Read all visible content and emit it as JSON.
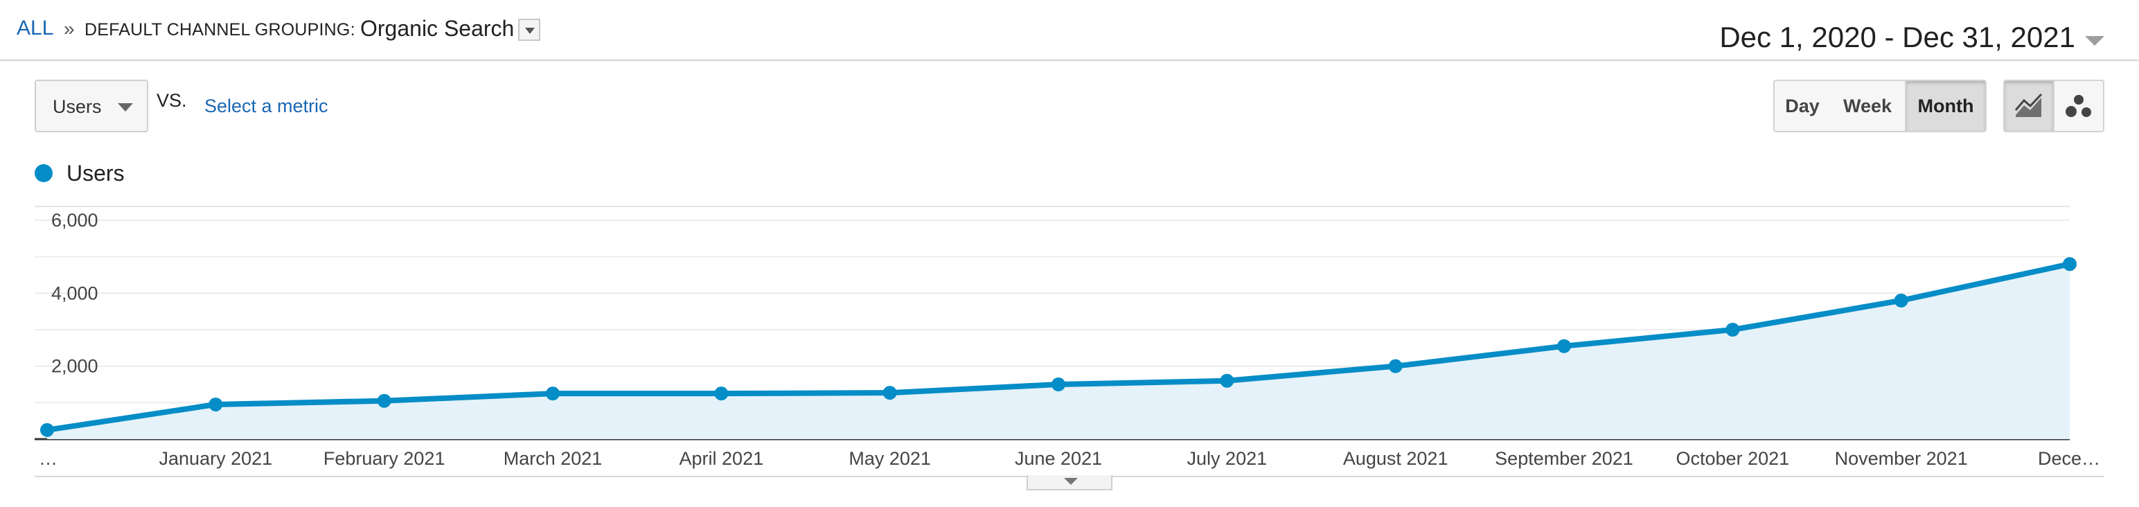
{
  "breadcrumb": {
    "all": "ALL",
    "separator": "»",
    "label": "DEFAULT CHANNEL GROUPING:",
    "value": "Organic Search"
  },
  "date_range": "Dec 1, 2020 - Dec 31, 2021",
  "controls": {
    "metric": "Users",
    "vs": "VS.",
    "select_metric": "Select a metric",
    "granularity": [
      "Day",
      "Week",
      "Month"
    ],
    "granularity_selected": "Month",
    "view_icons": [
      "line-chart-icon",
      "motion-chart-icon"
    ],
    "selected_view": "line-chart-icon"
  },
  "colors": {
    "series": "#058dc7",
    "area_fill": "#e5f2f9",
    "link": "#1a66b3"
  },
  "chart_data": {
    "type": "area",
    "series": [
      {
        "name": "Users",
        "values": [
          250,
          950,
          1050,
          1250,
          1250,
          1270,
          1500,
          1600,
          2000,
          2550,
          3000,
          3800,
          4800
        ]
      }
    ],
    "x": [
      "…",
      "January 2021",
      "February 2021",
      "March 2021",
      "April 2021",
      "May 2021",
      "June 2021",
      "July 2021",
      "August 2021",
      "September 2021",
      "October 2021",
      "November 2021",
      "Dece…"
    ],
    "y_ticks": [
      "6,000",
      "4,000",
      "2,000"
    ],
    "y_tick_values": [
      6000,
      4000,
      2000
    ],
    "ylim": [
      0,
      6000
    ],
    "grid": true,
    "legend": "top-left"
  }
}
